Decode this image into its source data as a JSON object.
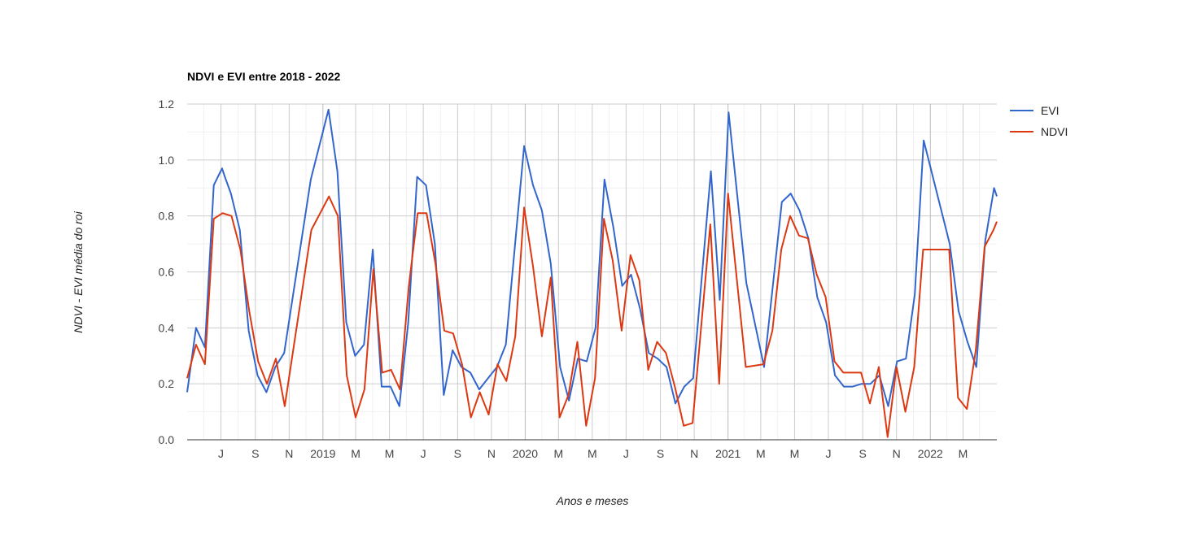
{
  "chart_data": {
    "type": "line",
    "title": "NDVI e EVI entre 2018 - 2022",
    "xlabel": "Anos e meses",
    "ylabel": "NDVI - EVI média do roi",
    "ylim": [
      0,
      1.2
    ],
    "yticks": [
      0.0,
      0.2,
      0.4,
      0.6,
      0.8,
      1.0,
      1.2
    ],
    "ytick_labels": [
      "0.0",
      "0.2",
      "0.4",
      "0.6",
      "0.8",
      "1.0",
      "1.2"
    ],
    "xlim": [
      "2018-05-01",
      "2022-05-01"
    ],
    "grid": true,
    "legend_position": "right",
    "xticks": [
      {
        "date": "2018-07-01",
        "label": "J"
      },
      {
        "date": "2018-09-01",
        "label": "S"
      },
      {
        "date": "2018-11-01",
        "label": "N"
      },
      {
        "date": "2019-01-01",
        "label": "2019"
      },
      {
        "date": "2019-03-01",
        "label": "M"
      },
      {
        "date": "2019-05-01",
        "label": "M"
      },
      {
        "date": "2019-07-01",
        "label": "J"
      },
      {
        "date": "2019-09-01",
        "label": "S"
      },
      {
        "date": "2019-11-01",
        "label": "N"
      },
      {
        "date": "2020-01-01",
        "label": "2020"
      },
      {
        "date": "2020-03-01",
        "label": "M"
      },
      {
        "date": "2020-05-01",
        "label": "M"
      },
      {
        "date": "2020-07-01",
        "label": "J"
      },
      {
        "date": "2020-09-01",
        "label": "S"
      },
      {
        "date": "2020-11-01",
        "label": "N"
      },
      {
        "date": "2021-01-01",
        "label": "2021"
      },
      {
        "date": "2021-03-01",
        "label": "M"
      },
      {
        "date": "2021-05-01",
        "label": "M"
      },
      {
        "date": "2021-07-01",
        "label": "J"
      },
      {
        "date": "2021-09-01",
        "label": "S"
      },
      {
        "date": "2021-11-01",
        "label": "N"
      },
      {
        "date": "2022-01-01",
        "label": "2022"
      },
      {
        "date": "2022-03-01",
        "label": "M"
      }
    ],
    "series": [
      {
        "name": "EVI",
        "color": "#3366cc",
        "points": [
          [
            "2018-05-01",
            0.17
          ],
          [
            "2018-05-17",
            0.4
          ],
          [
            "2018-06-02",
            0.33
          ],
          [
            "2018-06-18",
            0.91
          ],
          [
            "2018-07-03",
            0.97
          ],
          [
            "2018-07-08",
            0.94
          ],
          [
            "2018-07-19",
            0.88
          ],
          [
            "2018-08-04",
            0.75
          ],
          [
            "2018-08-20",
            0.39
          ],
          [
            "2018-09-05",
            0.23
          ],
          [
            "2018-09-21",
            0.17
          ],
          [
            "2018-10-07",
            0.26
          ],
          [
            "2018-10-23",
            0.31
          ],
          [
            "2018-12-10",
            0.93
          ],
          [
            "2019-01-11",
            1.18
          ],
          [
            "2019-01-27",
            0.96
          ],
          [
            "2019-02-12",
            0.42
          ],
          [
            "2019-02-28",
            0.3
          ],
          [
            "2019-03-16",
            0.34
          ],
          [
            "2019-04-01",
            0.68
          ],
          [
            "2019-04-17",
            0.19
          ],
          [
            "2019-05-03",
            0.19
          ],
          [
            "2019-05-19",
            0.12
          ],
          [
            "2019-06-04",
            0.42
          ],
          [
            "2019-06-20",
            0.94
          ],
          [
            "2019-07-06",
            0.91
          ],
          [
            "2019-07-22",
            0.7
          ],
          [
            "2019-08-07",
            0.16
          ],
          [
            "2019-08-23",
            0.32
          ],
          [
            "2019-09-08",
            0.26
          ],
          [
            "2019-09-24",
            0.24
          ],
          [
            "2019-10-10",
            0.18
          ],
          [
            "2019-10-26",
            0.22
          ],
          [
            "2019-11-11",
            0.26
          ],
          [
            "2019-11-27",
            0.34
          ],
          [
            "2019-12-30",
            1.05
          ],
          [
            "2020-01-15",
            0.91
          ],
          [
            "2020-01-31",
            0.82
          ],
          [
            "2020-02-16",
            0.63
          ],
          [
            "2020-03-04",
            0.26
          ],
          [
            "2020-03-20",
            0.14
          ],
          [
            "2020-04-05",
            0.29
          ],
          [
            "2020-04-21",
            0.28
          ],
          [
            "2020-05-07",
            0.4
          ],
          [
            "2020-05-23",
            0.93
          ],
          [
            "2020-06-08",
            0.76
          ],
          [
            "2020-06-24",
            0.55
          ],
          [
            "2020-07-10",
            0.59
          ],
          [
            "2020-07-26",
            0.47
          ],
          [
            "2020-08-11",
            0.31
          ],
          [
            "2020-08-27",
            0.29
          ],
          [
            "2020-09-12",
            0.26
          ],
          [
            "2020-09-28",
            0.13
          ],
          [
            "2020-10-14",
            0.19
          ],
          [
            "2020-10-30",
            0.22
          ],
          [
            "2020-12-01",
            0.96
          ],
          [
            "2020-12-17",
            0.5
          ],
          [
            "2021-01-02",
            1.17
          ],
          [
            "2021-02-03",
            0.56
          ],
          [
            "2021-03-07",
            0.26
          ],
          [
            "2021-04-08",
            0.85
          ],
          [
            "2021-04-24",
            0.88
          ],
          [
            "2021-05-10",
            0.82
          ],
          [
            "2021-05-26",
            0.72
          ],
          [
            "2021-06-11",
            0.51
          ],
          [
            "2021-06-27",
            0.42
          ],
          [
            "2021-07-13",
            0.23
          ],
          [
            "2021-07-29",
            0.19
          ],
          [
            "2021-08-14",
            0.19
          ],
          [
            "2021-08-30",
            0.2
          ],
          [
            "2021-09-15",
            0.2
          ],
          [
            "2021-10-01",
            0.23
          ],
          [
            "2021-10-17",
            0.12
          ],
          [
            "2021-11-02",
            0.28
          ],
          [
            "2021-11-18",
            0.29
          ],
          [
            "2021-12-04",
            0.52
          ],
          [
            "2021-12-20",
            1.07
          ],
          [
            "2022-02-05",
            0.7
          ],
          [
            "2022-02-21",
            0.46
          ],
          [
            "2022-03-09",
            0.35
          ],
          [
            "2022-03-25",
            0.26
          ],
          [
            "2022-04-10",
            0.71
          ],
          [
            "2022-04-26",
            0.9
          ],
          [
            "2022-05-01",
            0.87
          ]
        ]
      },
      {
        "name": "NDVI",
        "color": "#dc3912",
        "points": [
          [
            "2018-05-01",
            0.22
          ],
          [
            "2018-05-17",
            0.34
          ],
          [
            "2018-06-02",
            0.27
          ],
          [
            "2018-06-18",
            0.79
          ],
          [
            "2018-07-04",
            0.81
          ],
          [
            "2018-07-20",
            0.8
          ],
          [
            "2018-08-05",
            0.68
          ],
          [
            "2018-08-21",
            0.46
          ],
          [
            "2018-09-06",
            0.28
          ],
          [
            "2018-09-22",
            0.2
          ],
          [
            "2018-10-08",
            0.29
          ],
          [
            "2018-10-24",
            0.12
          ],
          [
            "2018-12-11",
            0.75
          ],
          [
            "2019-01-12",
            0.87
          ],
          [
            "2019-01-28",
            0.8
          ],
          [
            "2019-02-13",
            0.23
          ],
          [
            "2019-03-01",
            0.08
          ],
          [
            "2019-03-17",
            0.18
          ],
          [
            "2019-04-02",
            0.61
          ],
          [
            "2019-04-18",
            0.24
          ],
          [
            "2019-05-04",
            0.25
          ],
          [
            "2019-05-20",
            0.18
          ],
          [
            "2019-06-05",
            0.55
          ],
          [
            "2019-06-21",
            0.81
          ],
          [
            "2019-07-07",
            0.81
          ],
          [
            "2019-07-23",
            0.63
          ],
          [
            "2019-08-08",
            0.39
          ],
          [
            "2019-08-24",
            0.38
          ],
          [
            "2019-09-09",
            0.27
          ],
          [
            "2019-09-25",
            0.08
          ],
          [
            "2019-10-11",
            0.17
          ],
          [
            "2019-10-27",
            0.09
          ],
          [
            "2019-11-12",
            0.27
          ],
          [
            "2019-11-28",
            0.21
          ],
          [
            "2019-12-14",
            0.37
          ],
          [
            "2019-12-30",
            0.83
          ],
          [
            "2020-01-15",
            0.62
          ],
          [
            "2020-01-31",
            0.37
          ],
          [
            "2020-02-16",
            0.58
          ],
          [
            "2020-03-03",
            0.08
          ],
          [
            "2020-03-19",
            0.16
          ],
          [
            "2020-04-04",
            0.35
          ],
          [
            "2020-04-20",
            0.05
          ],
          [
            "2020-05-06",
            0.22
          ],
          [
            "2020-05-22",
            0.79
          ],
          [
            "2020-06-07",
            0.64
          ],
          [
            "2020-06-23",
            0.39
          ],
          [
            "2020-07-09",
            0.66
          ],
          [
            "2020-07-25",
            0.57
          ],
          [
            "2020-08-10",
            0.25
          ],
          [
            "2020-08-26",
            0.35
          ],
          [
            "2020-09-11",
            0.31
          ],
          [
            "2020-09-27",
            0.19
          ],
          [
            "2020-10-13",
            0.05
          ],
          [
            "2020-10-29",
            0.06
          ],
          [
            "2020-11-30",
            0.77
          ],
          [
            "2020-12-16",
            0.2
          ],
          [
            "2021-01-01",
            0.88
          ],
          [
            "2021-02-02",
            0.26
          ],
          [
            "2021-03-06",
            0.27
          ],
          [
            "2021-03-22",
            0.39
          ],
          [
            "2021-04-07",
            0.68
          ],
          [
            "2021-04-23",
            0.8
          ],
          [
            "2021-05-09",
            0.73
          ],
          [
            "2021-05-25",
            0.72
          ],
          [
            "2021-06-10",
            0.59
          ],
          [
            "2021-06-26",
            0.51
          ],
          [
            "2021-07-12",
            0.28
          ],
          [
            "2021-07-28",
            0.24
          ],
          [
            "2021-08-13",
            0.24
          ],
          [
            "2021-08-29",
            0.24
          ],
          [
            "2021-09-14",
            0.13
          ],
          [
            "2021-09-30",
            0.26
          ],
          [
            "2021-10-16",
            0.01
          ],
          [
            "2021-11-01",
            0.26
          ],
          [
            "2021-11-17",
            0.1
          ],
          [
            "2021-12-03",
            0.26
          ],
          [
            "2021-12-19",
            0.68
          ],
          [
            "2022-02-04",
            0.68
          ],
          [
            "2022-02-20",
            0.15
          ],
          [
            "2022-03-08",
            0.11
          ],
          [
            "2022-03-24",
            0.32
          ],
          [
            "2022-04-09",
            0.69
          ],
          [
            "2022-04-25",
            0.75
          ],
          [
            "2022-05-01",
            0.78
          ]
        ]
      }
    ]
  }
}
